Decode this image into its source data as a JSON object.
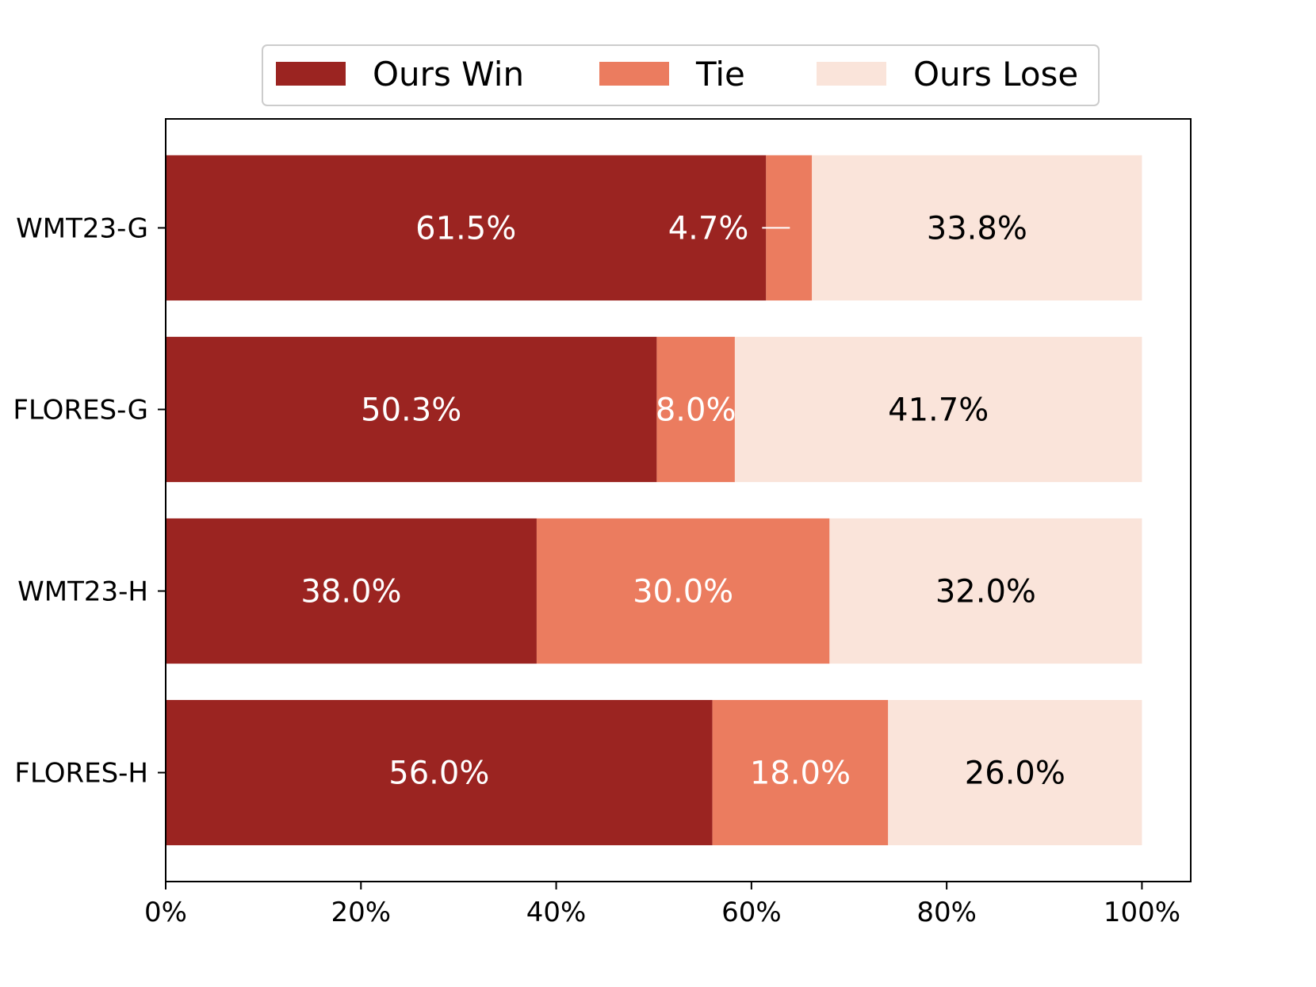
{
  "chart_data": {
    "type": "bar",
    "orientation": "horizontal",
    "stacked": true,
    "categories": [
      "WMT23-G",
      "FLORES-G",
      "WMT23-H",
      "FLORES-H"
    ],
    "series": [
      {
        "name": "Ours Win",
        "color": "#9b2421",
        "label_color": "#ffffff",
        "values": [
          61.5,
          50.3,
          38.0,
          56.0
        ],
        "labels": [
          "61.5%",
          "50.3%",
          "38.0%",
          "56.0%"
        ]
      },
      {
        "name": "Tie",
        "color": "#eb7c5f",
        "label_color": "#ffffff",
        "values": [
          4.7,
          8.0,
          30.0,
          18.0
        ],
        "labels": [
          "4.7%",
          "8.0%",
          "30.0%",
          "18.0%"
        ]
      },
      {
        "name": "Ours Lose",
        "color": "#fae4da",
        "label_color": "#000000",
        "values": [
          33.8,
          41.7,
          32.0,
          26.0
        ],
        "labels": [
          "33.8%",
          "41.7%",
          "32.0%",
          "26.0%"
        ]
      }
    ],
    "xlim": [
      0,
      105
    ],
    "xticks": [
      0,
      20,
      40,
      60,
      80,
      100
    ],
    "xtick_labels": [
      "0%",
      "20%",
      "40%",
      "60%",
      "80%",
      "100%"
    ],
    "xlabel": "",
    "ylabel": "",
    "title": "",
    "legend_position": "top-center",
    "grid": false
  }
}
